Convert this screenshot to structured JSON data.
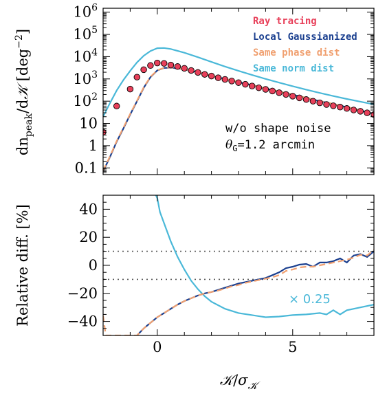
{
  "chart_data": [
    {
      "type": "line",
      "ylabel": "dn_peak/dK [deg^-2]",
      "ylabel_parts": {
        "main": "dn",
        "sub": "peak",
        "div": "/d",
        "K": "𝒦",
        "open": " [deg",
        "sup": "−2",
        "close": "]"
      },
      "xlim": [
        -2,
        8
      ],
      "ylim": [
        0.05,
        1500000
      ],
      "yscale": "log",
      "ytick_labels": [
        "0.1",
        "1",
        "10",
        "100",
        "1000",
        "10⁴",
        "10⁵",
        "10⁶"
      ],
      "annotation": [
        "w/o shape noise",
        "θ_G=1.2 arcmin"
      ],
      "annotation_parts": {
        "line1": "w/o shape noise",
        "theta": "θ",
        "sub": "G",
        "rest": "=1.2 arcmin"
      },
      "legend_placement": "top-right",
      "series": [
        {
          "name": "Ray tracing",
          "color": "#e8405a",
          "style": "points",
          "x": [
            -2.0,
            -1.5,
            -1.0,
            -0.75,
            -0.5,
            -0.25,
            0.0,
            0.25,
            0.5,
            0.75,
            1.0,
            1.25,
            1.5,
            1.75,
            2.0,
            2.25,
            2.5,
            2.75,
            3.0,
            3.25,
            3.5,
            3.75,
            4.0,
            4.25,
            4.5,
            4.75,
            5.0,
            5.25,
            5.5,
            5.75,
            6.0,
            6.25,
            6.5,
            6.75,
            7.0,
            7.25,
            7.5,
            7.75,
            8.0
          ],
          "y": [
            4,
            60,
            350,
            1200,
            2600,
            4000,
            5200,
            5000,
            4200,
            3600,
            3000,
            2400,
            1950,
            1600,
            1350,
            1130,
            950,
            800,
            680,
            575,
            480,
            400,
            340,
            285,
            240,
            200,
            168,
            140,
            118,
            100,
            84,
            71,
            62,
            54,
            47,
            40,
            35,
            30,
            25
          ]
        },
        {
          "name": "Local Gaussianized",
          "color": "#1a3f8f",
          "style": "solid",
          "x": [
            -2.0,
            -1.75,
            -1.5,
            -1.25,
            -1.0,
            -0.75,
            -0.5,
            -0.25,
            0.0,
            0.25,
            0.5,
            1.0,
            1.5,
            2.0,
            2.5,
            3.0,
            3.5,
            4.0,
            4.5,
            5.0,
            5.5,
            6.0,
            6.5,
            7.0,
            7.5,
            8.0
          ],
          "y": [
            0.07,
            0.3,
            1.5,
            6,
            25,
            100,
            400,
            1200,
            2400,
            3100,
            3200,
            2700,
            2000,
            1400,
            1000,
            720,
            520,
            370,
            270,
            195,
            140,
            100,
            74,
            54,
            38,
            27
          ]
        },
        {
          "name": "Same phase dist",
          "color": "#f0a070",
          "style": "dashed",
          "x": [
            -2.0,
            -1.75,
            -1.5,
            -1.25,
            -1.0,
            -0.75,
            -0.5,
            -0.25,
            0.0,
            0.25,
            0.5,
            1.0,
            1.5,
            2.0,
            2.5,
            3.0,
            3.5,
            4.0,
            4.5,
            5.0,
            5.5,
            6.0,
            6.5,
            7.0,
            7.5,
            8.0
          ],
          "y": [
            0.075,
            0.32,
            1.6,
            6.5,
            27,
            105,
            420,
            1250,
            2450,
            3150,
            3250,
            2750,
            2030,
            1420,
            1010,
            730,
            525,
            375,
            272,
            197,
            142,
            102,
            75,
            55,
            39,
            27.5
          ]
        },
        {
          "name": "Same norm dist",
          "color": "#4ab8d8",
          "style": "solid",
          "x": [
            -2.0,
            -1.75,
            -1.5,
            -1.25,
            -1.0,
            -0.75,
            -0.5,
            -0.25,
            0.0,
            0.25,
            0.5,
            1.0,
            1.5,
            2.0,
            2.5,
            3.0,
            3.5,
            4.0,
            4.5,
            5.0,
            5.5,
            6.0,
            6.5,
            7.0,
            7.5,
            8.0
          ],
          "y": [
            20,
            80,
            300,
            900,
            2300,
            5500,
            11000,
            18000,
            24000,
            24500,
            22000,
            15000,
            9500,
            5800,
            3600,
            2300,
            1500,
            1000,
            680,
            470,
            330,
            235,
            170,
            125,
            95,
            72
          ]
        }
      ]
    },
    {
      "type": "line",
      "xlabel": "K/σ_K",
      "xlabel_parts": {
        "K": "𝒦",
        "slash": "/",
        "sigma": "σ",
        "sub": "𝒦"
      },
      "ylabel": "Relative diff. [%]",
      "xlim": [
        -2,
        8
      ],
      "ylim": [
        -50,
        50
      ],
      "xticks": [
        0,
        5
      ],
      "yticks": [
        -40,
        -20,
        0,
        20,
        40
      ],
      "ytick_labels": [
        "−40",
        "−20",
        "0",
        "20",
        "40"
      ],
      "xtick_labels": [
        "0",
        "5"
      ],
      "reference_lines": [
        10,
        -10
      ],
      "annotation": "× 0.25",
      "series": [
        {
          "name": "Local Gaussianized",
          "color": "#1a3f8f",
          "style": "solid",
          "x": [
            -0.75,
            -0.5,
            -0.25,
            0.0,
            0.25,
            0.5,
            0.75,
            1.0,
            1.25,
            1.5,
            1.75,
            2.0,
            2.25,
            2.5,
            2.75,
            3.0,
            3.25,
            3.5,
            3.75,
            4.0,
            4.25,
            4.5,
            4.75,
            5.0,
            5.25,
            5.5,
            5.75,
            6.0,
            6.25,
            6.5,
            6.75,
            7.0,
            7.25,
            7.5,
            7.75,
            8.0
          ],
          "y": [
            -50,
            -45,
            -41,
            -37,
            -34,
            -31,
            -28,
            -25.5,
            -23.5,
            -21.5,
            -20,
            -19,
            -17.5,
            -16,
            -14.5,
            -13,
            -12,
            -11,
            -10,
            -9,
            -7,
            -5,
            -2,
            -1,
            0.5,
            1,
            -1,
            2,
            2,
            3,
            5,
            2,
            7,
            8,
            6,
            10
          ]
        },
        {
          "name": "Same phase dist",
          "color": "#f0a070",
          "style": "dashed",
          "x": [
            -2.0,
            -1.9,
            -0.75,
            -0.5,
            -0.25,
            0.0,
            0.25,
            0.5,
            0.75,
            1.0,
            1.25,
            1.5,
            1.75,
            2.0,
            2.25,
            2.5,
            2.75,
            3.0,
            3.25,
            3.5,
            3.75,
            4.0,
            4.25,
            4.5,
            4.75,
            5.0,
            5.25,
            5.5,
            5.75,
            6.0,
            6.25,
            6.5,
            6.75,
            7.0,
            7.25,
            7.5,
            7.75,
            8.0
          ],
          "y": [
            -36,
            -50,
            -50,
            -45,
            -41,
            -37,
            -34,
            -31,
            -28,
            -25.5,
            -23.5,
            -21.5,
            -20,
            -19,
            -18,
            -16.5,
            -15,
            -14,
            -12.5,
            -11.5,
            -10.5,
            -9.5,
            -8.5,
            -7,
            -4,
            -3,
            -1.5,
            -1,
            -1,
            0,
            1,
            2,
            3,
            4,
            5.5,
            7.5,
            7,
            11
          ]
        },
        {
          "name": "Same norm dist",
          "color": "#4ab8d8",
          "style": "solid",
          "x": [
            -0.05,
            0.0,
            0.1,
            0.25,
            0.5,
            0.75,
            1.0,
            1.25,
            1.5,
            1.75,
            2.0,
            2.5,
            3.0,
            3.5,
            4.0,
            4.5,
            5.0,
            5.5,
            6.0,
            6.25,
            6.5,
            6.75,
            7.0,
            7.5,
            8.0
          ],
          "y": [
            50,
            48,
            38,
            30,
            17,
            6,
            -3,
            -11,
            -17,
            -22,
            -26,
            -31,
            -34,
            -35.5,
            -37,
            -36.5,
            -35.5,
            -35,
            -34,
            -35,
            -32,
            -35,
            -32,
            -30,
            -28
          ]
        }
      ]
    }
  ]
}
